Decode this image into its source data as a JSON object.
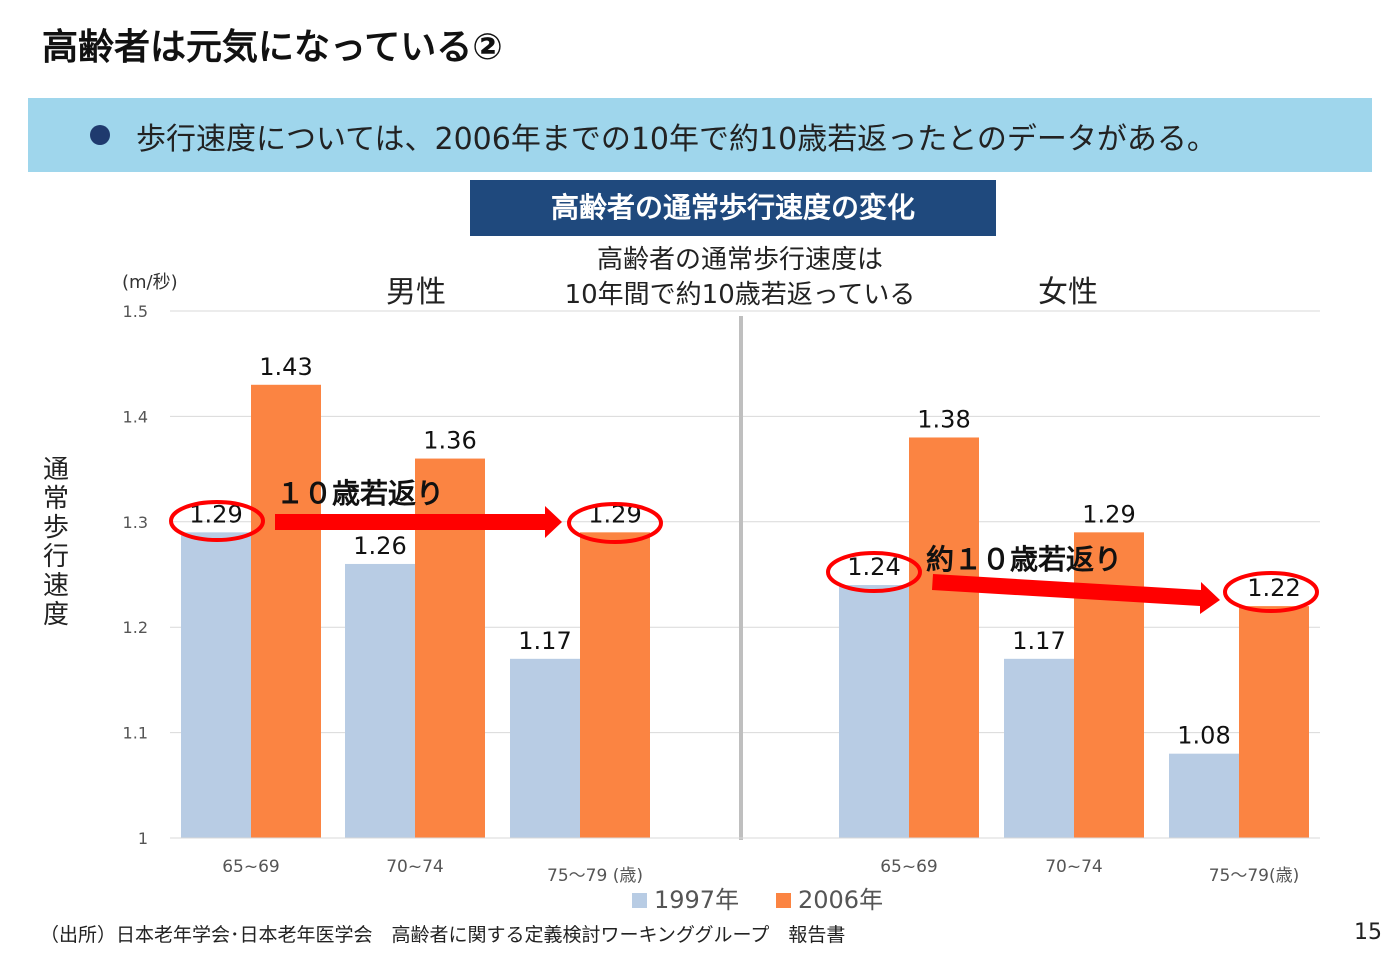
{
  "title": "高齢者は元気になっている②",
  "banner": {
    "bullet_icon": "bullet-dot",
    "text": "歩行速度については、2006年までの10年で約10歳若返ったとのデータがある。"
  },
  "chart_title": "高齢者の通常歩行速度の変化",
  "footer": {
    "source": "（出所）日本老年学会･日本老年医学会　高齢者に関する定義検討ワーキンググループ　報告書",
    "page": "15"
  },
  "chart_data": {
    "type": "bar",
    "ylabel": "通常歩行速度",
    "yunit": "(m/秒)",
    "ylim": [
      1,
      1.5
    ],
    "yticks": [
      "1",
      "1.1",
      "1.2",
      "1.3",
      "1.4",
      "1.5"
    ],
    "grid": true,
    "legend_placement": "bottom",
    "annotation_center": [
      "高齢者の通常歩行速度は",
      "10年間で約10歳若返っている"
    ],
    "panels": [
      {
        "label": "男性",
        "categories": [
          "65~69",
          "70~74",
          "75～79 (歳)"
        ],
        "series": [
          {
            "name": "1997年",
            "values": [
              1.29,
              1.26,
              1.17
            ],
            "color": "#b8cce4"
          },
          {
            "name": "2006年",
            "values": [
              1.43,
              1.36,
              1.29
            ],
            "color": "#fb8442"
          }
        ],
        "arrow_label": "１０歳若返り"
      },
      {
        "label": "女性",
        "categories": [
          "65~69",
          "70~74",
          "75～79(歳)"
        ],
        "series": [
          {
            "name": "1997年",
            "values": [
              1.24,
              1.17,
              1.08
            ],
            "color": "#b8cce4"
          },
          {
            "name": "2006年",
            "values": [
              1.38,
              1.29,
              1.22
            ],
            "color": "#fb8442"
          }
        ],
        "arrow_label": "約１０歳若返り"
      }
    ],
    "legend": [
      "1997年",
      "2006年"
    ],
    "highlight_color": "#ff0000"
  }
}
